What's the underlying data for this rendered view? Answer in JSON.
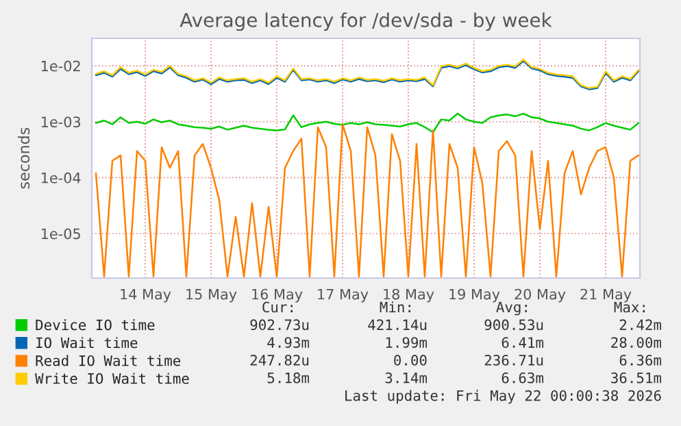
{
  "chart_data": {
    "type": "line",
    "title": "Average latency for /dev/sda - by week",
    "ylabel": "seconds",
    "log": "y",
    "grid": true,
    "legend": "bottom",
    "xlim": [
      "2026-05-13T16:30",
      "2026-05-22T00:30"
    ],
    "xticks": [
      {
        "value": "2026-05-14T12:00",
        "label": "14 May"
      },
      {
        "value": "2026-05-15T12:00",
        "label": "15 May"
      },
      {
        "value": "2026-05-16T12:00",
        "label": "16 May"
      },
      {
        "value": "2026-05-17T12:00",
        "label": "17 May"
      },
      {
        "value": "2026-05-18T12:00",
        "label": "18 May"
      },
      {
        "value": "2026-05-19T12:00",
        "label": "19 May"
      },
      {
        "value": "2026-05-20T12:00",
        "label": "20 May"
      },
      {
        "value": "2026-05-21T12:00",
        "label": "21 May"
      }
    ],
    "ylim": [
      1.6e-06,
      0.031
    ],
    "yticks": [
      {
        "value": 1e-05,
        "label": "1e-05"
      },
      {
        "value": 0.0001,
        "label": "1e-04"
      },
      {
        "value": 0.001,
        "label": "1e-03"
      },
      {
        "value": 0.01,
        "label": "1e-02"
      }
    ],
    "x": [
      "2026-05-13T18:00",
      "2026-05-13T21:00",
      "2026-05-14T00:00",
      "2026-05-14T03:00",
      "2026-05-14T06:00",
      "2026-05-14T09:00",
      "2026-05-14T12:00",
      "2026-05-14T15:00",
      "2026-05-14T18:00",
      "2026-05-14T21:00",
      "2026-05-15T00:00",
      "2026-05-15T03:00",
      "2026-05-15T06:00",
      "2026-05-15T09:00",
      "2026-05-15T12:00",
      "2026-05-15T15:00",
      "2026-05-15T18:00",
      "2026-05-15T21:00",
      "2026-05-16T00:00",
      "2026-05-16T03:00",
      "2026-05-16T06:00",
      "2026-05-16T09:00",
      "2026-05-16T12:00",
      "2026-05-16T15:00",
      "2026-05-16T18:00",
      "2026-05-16T21:00",
      "2026-05-17T00:00",
      "2026-05-17T03:00",
      "2026-05-17T06:00",
      "2026-05-17T09:00",
      "2026-05-17T12:00",
      "2026-05-17T15:00",
      "2026-05-17T18:00",
      "2026-05-17T21:00",
      "2026-05-18T00:00",
      "2026-05-18T03:00",
      "2026-05-18T06:00",
      "2026-05-18T09:00",
      "2026-05-18T12:00",
      "2026-05-18T15:00",
      "2026-05-18T18:00",
      "2026-05-18T21:00",
      "2026-05-19T00:00",
      "2026-05-19T03:00",
      "2026-05-19T06:00",
      "2026-05-19T09:00",
      "2026-05-19T12:00",
      "2026-05-19T15:00",
      "2026-05-19T18:00",
      "2026-05-19T21:00",
      "2026-05-20T00:00",
      "2026-05-20T03:00",
      "2026-05-20T06:00",
      "2026-05-20T09:00",
      "2026-05-20T12:00",
      "2026-05-20T15:00",
      "2026-05-20T18:00",
      "2026-05-20T21:00",
      "2026-05-21T00:00",
      "2026-05-21T03:00",
      "2026-05-21T06:00",
      "2026-05-21T09:00",
      "2026-05-21T12:00",
      "2026-05-21T15:00",
      "2026-05-21T18:00",
      "2026-05-21T21:00",
      "2026-05-22T00:00"
    ],
    "series": [
      {
        "name": "Device IO time",
        "color": "#00cc00",
        "values": [
          0.00095,
          0.00105,
          0.0009,
          0.0012,
          0.00095,
          0.001,
          0.00092,
          0.0011,
          0.00098,
          0.00105,
          0.0009,
          0.00085,
          0.0008,
          0.00078,
          0.00075,
          0.00082,
          0.00072,
          0.00078,
          0.00085,
          0.00078,
          0.00075,
          0.00072,
          0.0007,
          0.00073,
          0.0013,
          0.0008,
          0.0009,
          0.00095,
          0.001,
          0.00092,
          0.00088,
          0.00095,
          0.0009,
          0.00098,
          0.0009,
          0.00088,
          0.00085,
          0.00082,
          0.0009,
          0.00095,
          0.0008,
          0.00065,
          0.0011,
          0.00105,
          0.0014,
          0.0011,
          0.001,
          0.00095,
          0.0012,
          0.0013,
          0.00135,
          0.00125,
          0.0014,
          0.0012,
          0.00115,
          0.001,
          0.00095,
          0.0009,
          0.00085,
          0.00075,
          0.0007,
          0.0008,
          0.00095,
          0.00085,
          0.00078,
          0.00072,
          0.00095
        ]
      },
      {
        "name": "IO Wait time",
        "color": "#0066b3",
        "values": [
          0.0068,
          0.0075,
          0.0064,
          0.0088,
          0.0071,
          0.0077,
          0.0066,
          0.008,
          0.0073,
          0.0094,
          0.0068,
          0.0061,
          0.0052,
          0.0057,
          0.0047,
          0.0058,
          0.0052,
          0.0055,
          0.0056,
          0.0049,
          0.0055,
          0.0047,
          0.0061,
          0.0052,
          0.0085,
          0.0055,
          0.0057,
          0.0052,
          0.0055,
          0.0049,
          0.0057,
          0.0052,
          0.0058,
          0.0053,
          0.0055,
          0.0051,
          0.0057,
          0.0052,
          0.0055,
          0.0053,
          0.0058,
          0.0043,
          0.0092,
          0.0099,
          0.009,
          0.0103,
          0.0087,
          0.0076,
          0.008,
          0.0094,
          0.0099,
          0.0092,
          0.0122,
          0.009,
          0.0083,
          0.0071,
          0.0066,
          0.0064,
          0.0061,
          0.0043,
          0.0038,
          0.004,
          0.0075,
          0.0052,
          0.0061,
          0.0055,
          0.008
        ]
      },
      {
        "name": "Read IO Wait time",
        "color": "#ff8000",
        "values": [
          0.00012,
          1.7e-06,
          0.0002,
          0.00025,
          1.7e-06,
          0.0003,
          0.0002,
          1.7e-06,
          0.00035,
          0.00015,
          0.0003,
          1.7e-06,
          0.00025,
          0.0004,
          0.00015,
          4e-05,
          1.7e-06,
          2e-05,
          1.7e-06,
          3.5e-05,
          1.7e-06,
          3e-05,
          1.7e-06,
          0.00015,
          0.0003,
          0.0005,
          1.7e-06,
          0.0008,
          0.00035,
          1.7e-06,
          0.0009,
          0.0003,
          1.7e-06,
          0.0008,
          0.00025,
          1.7e-06,
          0.0006,
          0.0002,
          1.7e-06,
          0.0004,
          1.7e-06,
          0.0007,
          1.7e-06,
          0.0004,
          0.00015,
          1.7e-06,
          0.00035,
          8e-05,
          1.7e-06,
          0.0003,
          0.00045,
          0.00025,
          1.7e-06,
          0.0003,
          1.2e-05,
          0.0002,
          1.7e-06,
          0.00012,
          0.0003,
          5e-05,
          0.00015,
          0.0003,
          0.00035,
          0.0001,
          1.7e-06,
          0.0002,
          0.00025
        ]
      },
      {
        "name": "Write IO Wait time",
        "color": "#ffcc00",
        "values": [
          0.0072,
          0.008,
          0.0068,
          0.0095,
          0.0075,
          0.0082,
          0.007,
          0.0085,
          0.0078,
          0.01,
          0.0072,
          0.0065,
          0.0055,
          0.006,
          0.005,
          0.0062,
          0.0055,
          0.0058,
          0.006,
          0.0052,
          0.0058,
          0.005,
          0.0065,
          0.0055,
          0.009,
          0.0058,
          0.006,
          0.0055,
          0.0058,
          0.0052,
          0.006,
          0.0055,
          0.0062,
          0.0056,
          0.0058,
          0.0054,
          0.006,
          0.0055,
          0.0058,
          0.0056,
          0.0062,
          0.0045,
          0.0098,
          0.0105,
          0.0095,
          0.011,
          0.0092,
          0.008,
          0.0085,
          0.01,
          0.0105,
          0.0098,
          0.013,
          0.0095,
          0.0088,
          0.0075,
          0.007,
          0.0068,
          0.0065,
          0.0045,
          0.004,
          0.0042,
          0.008,
          0.0055,
          0.0065,
          0.0058,
          0.0085
        ]
      }
    ],
    "annotations": [
      "Cur:",
      "Min:",
      "Avg:",
      "Max:",
      "902.73u",
      "421.14u",
      "900.53u",
      "2.42m",
      "4.93m",
      "1.99m",
      "6.41m",
      "28.00m",
      "247.82u",
      "0.00",
      "236.71u",
      "6.36m",
      "5.18m",
      "3.14m",
      "6.63m",
      "36.51m",
      "Last update: Fri May 22 00:00:38 2026"
    ]
  }
}
